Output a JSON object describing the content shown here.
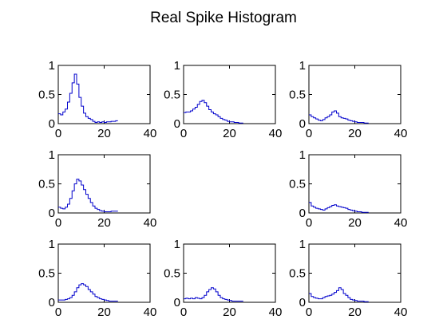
{
  "figure": {
    "title": "Real Spike Histogram"
  },
  "chart_data": [
    {
      "type": "line",
      "panel": "r1c1",
      "xlim": [
        0,
        40
      ],
      "ylim": [
        0,
        1
      ],
      "xticks": [
        "0",
        "20",
        "40"
      ],
      "yticks": [
        "0",
        "0.5",
        "1"
      ],
      "grid": false,
      "x": [
        0,
        1,
        2,
        3,
        4,
        5,
        6,
        7,
        8,
        9,
        10,
        11,
        12,
        13,
        14,
        15,
        16,
        17,
        18,
        19,
        20,
        21,
        22,
        23,
        24,
        25
      ],
      "y": [
        0.17,
        0.15,
        0.2,
        0.25,
        0.37,
        0.52,
        0.7,
        0.85,
        0.68,
        0.45,
        0.3,
        0.18,
        0.12,
        0.09,
        0.07,
        0.04,
        0.02,
        0.03,
        0.02,
        0.03,
        0.02,
        0.03,
        0.03,
        0.04,
        0.04,
        0.05
      ]
    },
    {
      "type": "line",
      "panel": "r1c2",
      "xlim": [
        0,
        40
      ],
      "ylim": [
        0,
        1
      ],
      "xticks": [
        "0",
        "20",
        "40"
      ],
      "yticks": [
        "0",
        "0.5",
        "1"
      ],
      "grid": false,
      "x": [
        0,
        1,
        2,
        3,
        4,
        5,
        6,
        7,
        8,
        9,
        10,
        11,
        12,
        13,
        14,
        15,
        16,
        17,
        18,
        19,
        20,
        21,
        22,
        23,
        24,
        25
      ],
      "y": [
        0.19,
        0.2,
        0.2,
        0.22,
        0.25,
        0.28,
        0.33,
        0.38,
        0.4,
        0.36,
        0.3,
        0.24,
        0.2,
        0.17,
        0.15,
        0.12,
        0.09,
        0.07,
        0.06,
        0.04,
        0.03,
        0.03,
        0.02,
        0.02,
        0.01,
        0.01
      ]
    },
    {
      "type": "line",
      "panel": "r1c3",
      "xlim": [
        0,
        40
      ],
      "ylim": [
        0,
        1
      ],
      "xticks": [
        "0",
        "20",
        "40"
      ],
      "yticks": [
        "0",
        "0.5",
        "1"
      ],
      "grid": false,
      "x": [
        0,
        1,
        2,
        3,
        4,
        5,
        6,
        7,
        8,
        9,
        10,
        11,
        12,
        13,
        14,
        15,
        16,
        17,
        18,
        19,
        20,
        21,
        22,
        23,
        24,
        25
      ],
      "y": [
        0.15,
        0.12,
        0.1,
        0.08,
        0.06,
        0.05,
        0.07,
        0.1,
        0.12,
        0.15,
        0.2,
        0.22,
        0.18,
        0.12,
        0.1,
        0.09,
        0.08,
        0.06,
        0.05,
        0.04,
        0.03,
        0.02,
        0.02,
        0.02,
        0.01,
        0.01
      ]
    },
    {
      "type": "line",
      "panel": "r2c1",
      "xlim": [
        0,
        40
      ],
      "ylim": [
        0,
        1
      ],
      "xticks": [
        "0",
        "20",
        "40"
      ],
      "yticks": [
        "0",
        "0.5",
        "1"
      ],
      "grid": false,
      "x": [
        0,
        1,
        2,
        3,
        4,
        5,
        6,
        7,
        8,
        9,
        10,
        11,
        12,
        13,
        14,
        15,
        16,
        17,
        18,
        19,
        20,
        21,
        22,
        23,
        24,
        25
      ],
      "y": [
        0.1,
        0.08,
        0.07,
        0.1,
        0.15,
        0.25,
        0.38,
        0.5,
        0.58,
        0.55,
        0.48,
        0.4,
        0.32,
        0.25,
        0.18,
        0.12,
        0.08,
        0.06,
        0.04,
        0.03,
        0.02,
        0.02,
        0.02,
        0.03,
        0.03,
        0.03
      ]
    },
    {
      "type": "line",
      "panel": "r2c3",
      "xlim": [
        0,
        40
      ],
      "ylim": [
        0,
        1
      ],
      "xticks": [
        "0",
        "20",
        "40"
      ],
      "yticks": [
        "0",
        "0.5",
        "1"
      ],
      "grid": false,
      "x": [
        0,
        1,
        2,
        3,
        4,
        5,
        6,
        7,
        8,
        9,
        10,
        11,
        12,
        13,
        14,
        15,
        16,
        17,
        18,
        19,
        20,
        21,
        22,
        23,
        24,
        25
      ],
      "y": [
        0.18,
        0.12,
        0.1,
        0.08,
        0.07,
        0.06,
        0.05,
        0.07,
        0.09,
        0.11,
        0.13,
        0.14,
        0.12,
        0.11,
        0.1,
        0.09,
        0.08,
        0.06,
        0.05,
        0.04,
        0.03,
        0.02,
        0.02,
        0.01,
        0.01,
        0.01
      ]
    },
    {
      "type": "line",
      "panel": "r3c1",
      "xlim": [
        0,
        40
      ],
      "ylim": [
        0,
        1
      ],
      "xticks": [
        "0",
        "20",
        "40"
      ],
      "yticks": [
        "0",
        "0.5",
        "1"
      ],
      "grid": false,
      "x": [
        0,
        1,
        2,
        3,
        4,
        5,
        6,
        7,
        8,
        9,
        10,
        11,
        12,
        13,
        14,
        15,
        16,
        17,
        18,
        19,
        20,
        21,
        22,
        23,
        24,
        25
      ],
      "y": [
        0.04,
        0.04,
        0.04,
        0.05,
        0.06,
        0.08,
        0.12,
        0.18,
        0.25,
        0.3,
        0.32,
        0.3,
        0.27,
        0.22,
        0.18,
        0.14,
        0.1,
        0.08,
        0.06,
        0.05,
        0.04,
        0.03,
        0.02,
        0.02,
        0.02,
        0.02
      ]
    },
    {
      "type": "line",
      "panel": "r3c2",
      "xlim": [
        0,
        40
      ],
      "ylim": [
        0,
        1
      ],
      "xticks": [
        "0",
        "20",
        "40"
      ],
      "yticks": [
        "0",
        "0.5",
        "1"
      ],
      "grid": false,
      "x": [
        0,
        1,
        2,
        3,
        4,
        5,
        6,
        7,
        8,
        9,
        10,
        11,
        12,
        13,
        14,
        15,
        16,
        17,
        18,
        19,
        20,
        21,
        22,
        23,
        24,
        25
      ],
      "y": [
        0.06,
        0.07,
        0.06,
        0.07,
        0.06,
        0.08,
        0.07,
        0.06,
        0.08,
        0.12,
        0.18,
        0.22,
        0.25,
        0.23,
        0.18,
        0.12,
        0.08,
        0.06,
        0.05,
        0.04,
        0.03,
        0.02,
        0.02,
        0.02,
        0.02,
        0.02
      ]
    },
    {
      "type": "line",
      "panel": "r3c3",
      "xlim": [
        0,
        40
      ],
      "ylim": [
        0,
        1
      ],
      "xticks": [
        "0",
        "20",
        "40"
      ],
      "yticks": [
        "0",
        "0.5",
        "1"
      ],
      "grid": false,
      "x": [
        0,
        1,
        2,
        3,
        4,
        5,
        6,
        7,
        8,
        9,
        10,
        11,
        12,
        13,
        14,
        15,
        16,
        17,
        18,
        19,
        20,
        21,
        22,
        23,
        24,
        25
      ],
      "y": [
        0.15,
        0.1,
        0.08,
        0.07,
        0.06,
        0.06,
        0.08,
        0.1,
        0.11,
        0.12,
        0.14,
        0.17,
        0.2,
        0.25,
        0.22,
        0.15,
        0.12,
        0.08,
        0.05,
        0.04,
        0.03,
        0.02,
        0.02,
        0.02,
        0.01,
        0.01
      ]
    }
  ],
  "colors": {
    "series": "#0000cc",
    "axes": "#000000",
    "background": "#ffffff"
  }
}
